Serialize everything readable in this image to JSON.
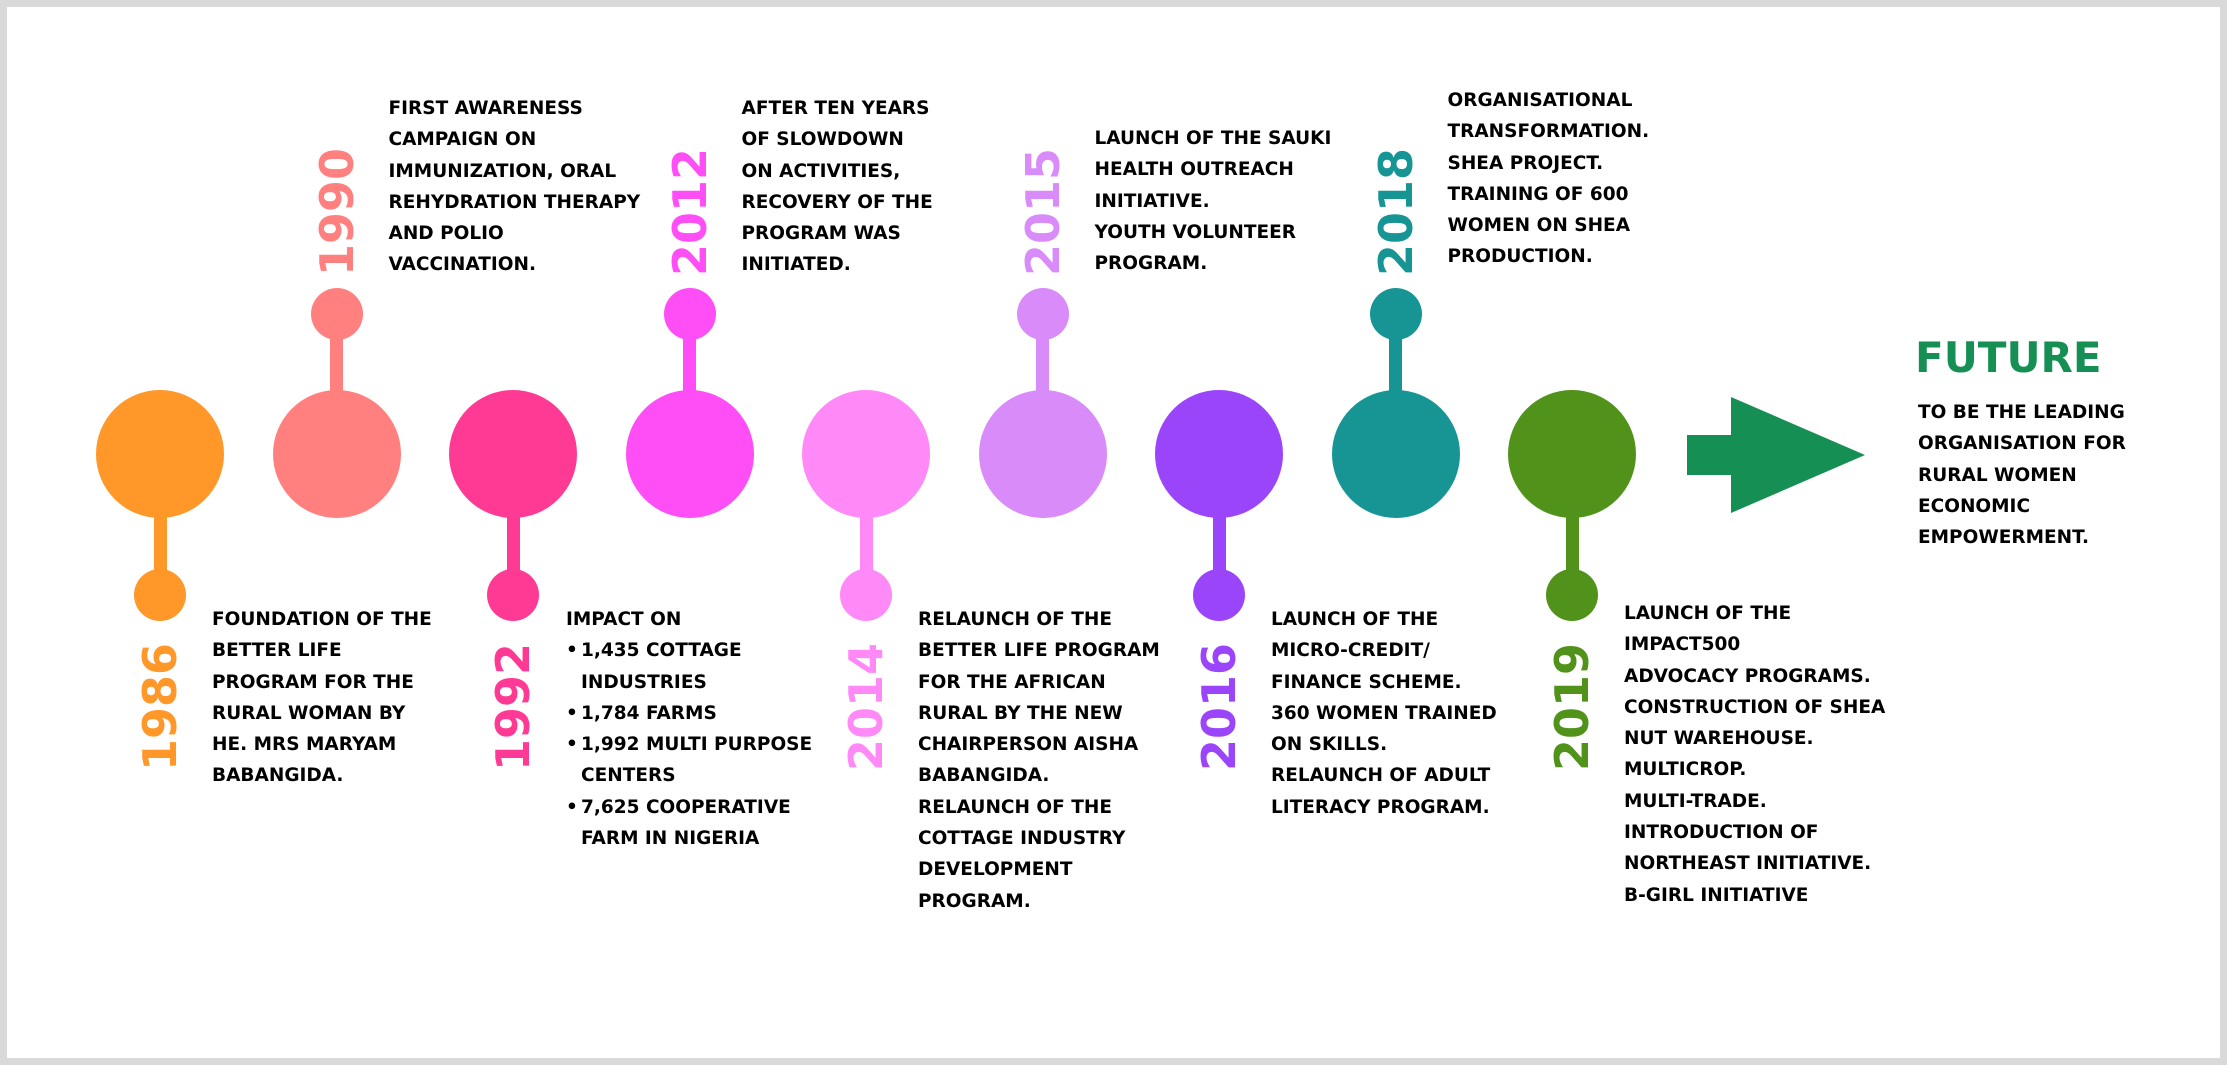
{
  "timeline": [
    {
      "year": "1986",
      "color": "#FF9729",
      "position": "bottom",
      "lines": [
        "FOUNDATION OF THE",
        "BETTER LIFE",
        "PROGRAM FOR THE",
        "RURAL WOMAN BY",
        "HE. MRS MARYAM",
        "BABANGIDA."
      ]
    },
    {
      "year": "1990",
      "color": "#FF807E",
      "position": "top",
      "lines": [
        "FIRST AWARENESS",
        "CAMPAIGN ON",
        "IMMUNIZATION, ORAL",
        "REHYDRATION THERAPY",
        "AND POLIO",
        "VACCINATION."
      ]
    },
    {
      "year": "1992",
      "color": "#FF3A94",
      "position": "bottom",
      "heading": "IMPACT ON",
      "bullets": [
        [
          "1,435 COTTAGE",
          "INDUSTRIES"
        ],
        [
          "1,784 FARMS"
        ],
        [
          "1,992 MULTI PURPOSE",
          "CENTERS"
        ],
        [
          "7,625 COOPERATIVE",
          "FARM IN NIGERIA"
        ]
      ]
    },
    {
      "year": "2012",
      "color": "#FF4EF5",
      "position": "top",
      "lines": [
        "AFTER TEN YEARS",
        "OF SLOWDOWN",
        "ON ACTIVITIES,",
        "RECOVERY OF THE",
        "PROGRAM WAS",
        "INITIATED."
      ]
    },
    {
      "year": "2014",
      "color": "#FF8AF7",
      "position": "bottom",
      "lines": [
        "RELAUNCH OF THE",
        "BETTER LIFE PROGRAM",
        "FOR THE AFRICAN",
        "RURAL BY THE NEW",
        "CHAIRPERSON AISHA",
        "BABANGIDA.",
        "RELAUNCH OF THE",
        "COTTAGE INDUSTRY",
        "DEVELOPMENT",
        "PROGRAM."
      ]
    },
    {
      "year": "2015",
      "color": "#D98BF9",
      "position": "top",
      "lines": [
        "LAUNCH OF THE SAUKI",
        "HEALTH OUTREACH",
        "INITIATIVE.",
        "YOUTH VOLUNTEER",
        "PROGRAM."
      ]
    },
    {
      "year": "2016",
      "color": "#9B45FA",
      "position": "bottom",
      "lines": [
        "LAUNCH OF THE",
        "MICRO-CREDIT/",
        "FINANCE SCHEME.",
        "360 WOMEN TRAINED",
        "ON SKILLS.",
        "RELAUNCH OF ADULT",
        "LITERACY PROGRAM."
      ]
    },
    {
      "year": "2018",
      "color": "#179595",
      "position": "top",
      "lines": [
        "ORGANISATIONAL",
        "TRANSFORMATION.",
        "SHEA PROJECT.",
        "TRAINING OF 600",
        "WOMEN ON SHEA",
        "PRODUCTION."
      ]
    },
    {
      "year": "2019",
      "color": "#51921A",
      "position": "bottom",
      "lines": [
        "LAUNCH OF THE",
        "IMPACT500",
        "ADVOCACY PROGRAMS.",
        "CONSTRUCTION OF SHEA",
        "NUT WAREHOUSE.",
        "MULTICROP.",
        "MULTI-TRADE.",
        "INTRODUCTION OF",
        "NORTHEAST INITIATIVE.",
        "B-GIRL INITIATIVE"
      ]
    }
  ],
  "future": {
    "title": "FUTURE",
    "color": "#158F53",
    "arrow_color": "#158F53",
    "arrow_icon": "right-arrow-icon",
    "lines": [
      "TO BE THE LEADING",
      "ORGANISATION FOR",
      "RURAL WOMEN",
      "ECONOMIC",
      "EMPOWERMENT."
    ]
  }
}
